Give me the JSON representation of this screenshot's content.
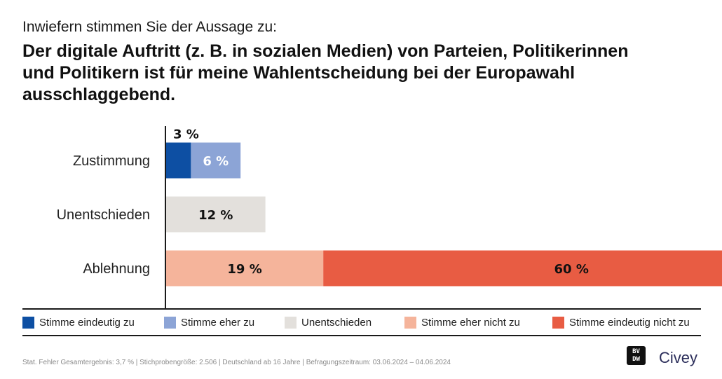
{
  "question": "Inwiefern stimmen Sie der Aussage zu:",
  "headline": "Der digitale Auftritt (z. B. in sozialen Medien) von Parteien, Politikerinnen und Politikern ist für meine Wahlentscheidung bei der Europawahl ausschlaggebend.",
  "chart_data": {
    "type": "bar",
    "orientation": "horizontal",
    "stacked": true,
    "categories": [
      "Zustimmung",
      "Unentschieden",
      "Ablehnung"
    ],
    "series": [
      {
        "name": "Stimme eindeutig zu",
        "color": "#0d4fa3",
        "values": [
          3,
          0,
          0
        ],
        "labels": [
          "3 %",
          "",
          ""
        ]
      },
      {
        "name": "Stimme eher zu",
        "color": "#8ca4d6",
        "values": [
          6,
          0,
          0
        ],
        "labels": [
          "6 %",
          "",
          ""
        ]
      },
      {
        "name": "Unentschieden",
        "color": "#e3e0dc",
        "values": [
          0,
          12,
          0
        ],
        "labels": [
          "",
          "12 %",
          ""
        ]
      },
      {
        "name": "Stimme eher nicht zu",
        "color": "#f5b49b",
        "values": [
          0,
          0,
          19
        ],
        "labels": [
          "",
          "",
          "19 %"
        ]
      },
      {
        "name": "Stimme eindeutig nicht zu",
        "color": "#e85c43",
        "values": [
          0,
          0,
          60
        ],
        "labels": [
          "",
          "",
          "60 %"
        ]
      }
    ],
    "xlim": [
      0,
      100
    ],
    "grid": false,
    "legend_position": "bottom"
  },
  "footer": "Stat. Fehler Gesamtergebnis: 3,7 % | Stichprobengröße: 2.506 | Deutschland ab 16 Jahre | Befragungszeitraum: 03.06.2024 – 04.06.2024",
  "logos": {
    "bvdw": "BVDW",
    "civey": "Civey"
  }
}
